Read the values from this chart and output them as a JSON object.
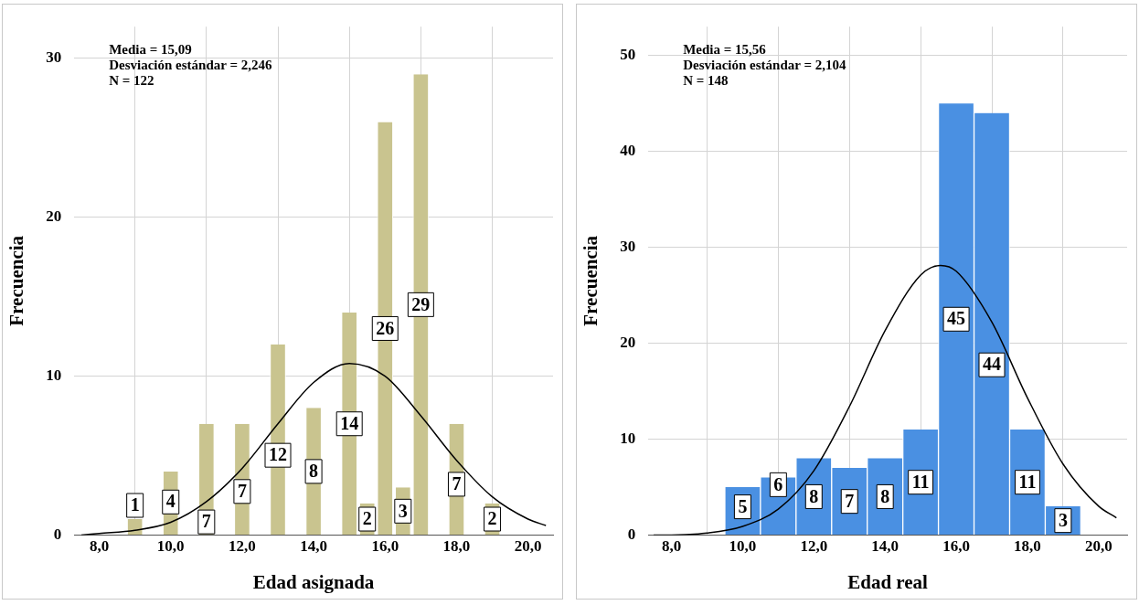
{
  "chart_data": [
    {
      "type": "histogram",
      "xlabel": "Edad asignada",
      "ylabel": "Frecuencia",
      "color": "#c9c48f",
      "bins": [
        8.75,
        9.25,
        9.75,
        10.25,
        10.75,
        11.25,
        11.75,
        12.25,
        12.75,
        13.25,
        13.75,
        14.25,
        14.75,
        15.25,
        15.75,
        16.25,
        16.75,
        17.25,
        17.75,
        18.25,
        18.75,
        19.25
      ],
      "values": [
        1,
        0,
        4,
        0,
        7,
        0,
        7,
        0,
        12,
        0,
        8,
        0,
        14,
        2,
        26,
        3,
        29,
        0,
        7,
        0,
        2
      ],
      "value_labels": [
        "1",
        null,
        "4",
        null,
        "7",
        null,
        "7",
        null,
        "12",
        null,
        "8",
        null,
        "14",
        "2",
        "26",
        "3",
        "29",
        null,
        "7",
        null,
        "2"
      ],
      "series": [
        {
          "type": "line",
          "color": "#000000",
          "x": [
            7.5,
            8,
            9,
            10,
            11,
            12,
            13,
            14,
            15,
            16,
            17,
            18,
            19,
            20,
            20.5
          ],
          "values": [
            0,
            0.1,
            0.3,
            0.8,
            2.1,
            4.2,
            7.0,
            9.6,
            10.8,
            10.0,
            7.5,
            4.7,
            2.4,
            1.0,
            0.6
          ]
        }
      ],
      "xlim": [
        7.3,
        20.7
      ],
      "xticks": [
        {
          "value": 8,
          "label": "8,0"
        },
        {
          "value": 10,
          "label": "10,0"
        },
        {
          "value": 12,
          "label": "12,0"
        },
        {
          "value": 14,
          "label": "14,0"
        },
        {
          "value": 16,
          "label": "16,0"
        },
        {
          "value": 18,
          "label": "18,0"
        },
        {
          "value": 20,
          "label": "20,0"
        }
      ],
      "ylim": [
        0,
        32
      ],
      "yticks": [
        0,
        10,
        20,
        30
      ],
      "grid": true,
      "annotations": [
        "Media = 15,09",
        "Desviación estándar = 2,246",
        "N = 122"
      ]
    },
    {
      "type": "histogram",
      "xlabel": "Edad real",
      "ylabel": "Frecuencia",
      "color": "#4a90e2",
      "bins": [
        9.5,
        10.5,
        11.5,
        12.5,
        13.5,
        14.5,
        15.5,
        16.5,
        17.5,
        18.5,
        19.5
      ],
      "values": [
        5,
        6,
        8,
        7,
        8,
        11,
        45,
        44,
        11,
        3
      ],
      "value_labels": [
        "5",
        "6",
        "8",
        "7",
        "8",
        "11",
        "45",
        "44",
        "11",
        "3"
      ],
      "series": [
        {
          "type": "line",
          "color": "#000000",
          "x": [
            7.5,
            8,
            9,
            10,
            11,
            12,
            13,
            14,
            15,
            15.56,
            16,
            17,
            18,
            19,
            20,
            20.5
          ],
          "values": [
            0,
            0,
            0.2,
            0.9,
            2.7,
            6.7,
            13.4,
            21.3,
            27.1,
            28.1,
            27.5,
            22.2,
            14.3,
            7.4,
            3.0,
            1.8
          ]
        }
      ],
      "xlim": [
        7.35,
        20.8
      ],
      "xticks": [
        {
          "value": 8,
          "label": "8,0"
        },
        {
          "value": 10,
          "label": "10,0"
        },
        {
          "value": 12,
          "label": "12,0"
        },
        {
          "value": 14,
          "label": "14,0"
        },
        {
          "value": 16,
          "label": "16,0"
        },
        {
          "value": 18,
          "label": "18,0"
        },
        {
          "value": 20,
          "label": "20,0"
        }
      ],
      "ylim": [
        0,
        53
      ],
      "yticks": [
        0,
        10,
        20,
        30,
        40,
        50
      ],
      "grid": true,
      "annotations": [
        "Media = 15,56",
        "Desviación estándar = 2,104",
        "N = 148"
      ]
    }
  ]
}
